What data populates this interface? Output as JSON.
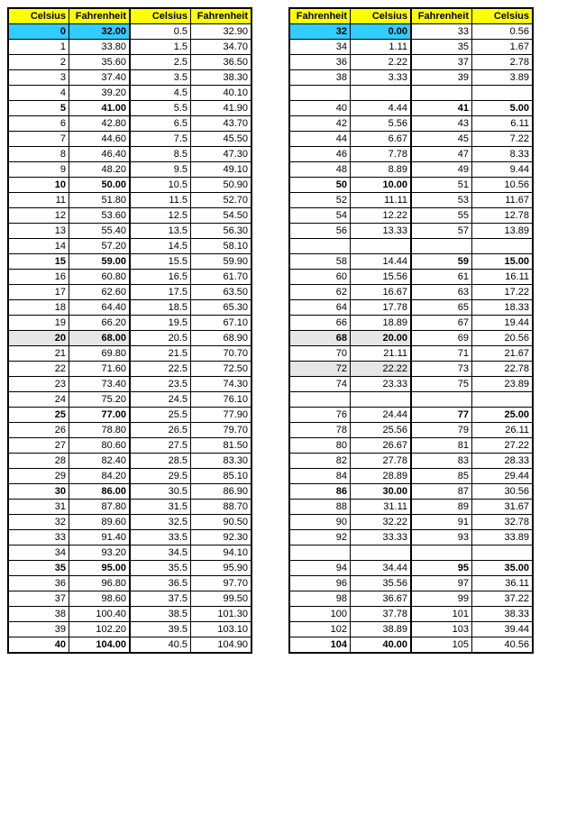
{
  "colors": {
    "header_bg": "#ffff00",
    "highlight_bg": "#33ccff",
    "shade_bg": "#e6e6e6",
    "border": "#000000",
    "background": "#ffffff"
  },
  "left_table": {
    "col1_header": "Celsius",
    "col2_header": "Fahrenheit",
    "col3_header": "Celsius",
    "col4_header": "Fahrenheit",
    "rows": [
      {
        "c1": "0",
        "f1": "32.00",
        "c2": "0.5",
        "f2": "32.90",
        "bold": true,
        "hl": true
      },
      {
        "c1": "1",
        "f1": "33.80",
        "c2": "1.5",
        "f2": "34.70"
      },
      {
        "c1": "2",
        "f1": "35.60",
        "c2": "2.5",
        "f2": "36.50"
      },
      {
        "c1": "3",
        "f1": "37.40",
        "c2": "3.5",
        "f2": "38.30"
      },
      {
        "c1": "4",
        "f1": "39.20",
        "c2": "4.5",
        "f2": "40.10"
      },
      {
        "c1": "5",
        "f1": "41.00",
        "c2": "5.5",
        "f2": "41.90",
        "bold": true
      },
      {
        "c1": "6",
        "f1": "42.80",
        "c2": "6.5",
        "f2": "43.70"
      },
      {
        "c1": "7",
        "f1": "44.60",
        "c2": "7.5",
        "f2": "45.50"
      },
      {
        "c1": "8",
        "f1": "46.40",
        "c2": "8.5",
        "f2": "47.30"
      },
      {
        "c1": "9",
        "f1": "48.20",
        "c2": "9.5",
        "f2": "49.10"
      },
      {
        "c1": "10",
        "f1": "50.00",
        "c2": "10.5",
        "f2": "50.90",
        "bold": true
      },
      {
        "c1": "11",
        "f1": "51.80",
        "c2": "11.5",
        "f2": "52.70"
      },
      {
        "c1": "12",
        "f1": "53.60",
        "c2": "12.5",
        "f2": "54.50"
      },
      {
        "c1": "13",
        "f1": "55.40",
        "c2": "13.5",
        "f2": "56.30"
      },
      {
        "c1": "14",
        "f1": "57.20",
        "c2": "14.5",
        "f2": "58.10"
      },
      {
        "c1": "15",
        "f1": "59.00",
        "c2": "15.5",
        "f2": "59.90",
        "bold": true
      },
      {
        "c1": "16",
        "f1": "60.80",
        "c2": "16.5",
        "f2": "61.70"
      },
      {
        "c1": "17",
        "f1": "62.60",
        "c2": "17.5",
        "f2": "63.50"
      },
      {
        "c1": "18",
        "f1": "64.40",
        "c2": "18.5",
        "f2": "65.30"
      },
      {
        "c1": "19",
        "f1": "66.20",
        "c2": "19.5",
        "f2": "67.10"
      },
      {
        "c1": "20",
        "f1": "68.00",
        "c2": "20.5",
        "f2": "68.90",
        "bold": true,
        "shade": true
      },
      {
        "c1": "21",
        "f1": "69.80",
        "c2": "21.5",
        "f2": "70.70"
      },
      {
        "c1": "22",
        "f1": "71.60",
        "c2": "22.5",
        "f2": "72.50"
      },
      {
        "c1": "23",
        "f1": "73.40",
        "c2": "23.5",
        "f2": "74.30"
      },
      {
        "c1": "24",
        "f1": "75.20",
        "c2": "24.5",
        "f2": "76.10"
      },
      {
        "c1": "25",
        "f1": "77.00",
        "c2": "25.5",
        "f2": "77.90",
        "bold": true
      },
      {
        "c1": "26",
        "f1": "78.80",
        "c2": "26.5",
        "f2": "79.70"
      },
      {
        "c1": "27",
        "f1": "80.60",
        "c2": "27.5",
        "f2": "81.50"
      },
      {
        "c1": "28",
        "f1": "82.40",
        "c2": "28.5",
        "f2": "83.30"
      },
      {
        "c1": "29",
        "f1": "84.20",
        "c2": "29.5",
        "f2": "85.10"
      },
      {
        "c1": "30",
        "f1": "86.00",
        "c2": "30.5",
        "f2": "86.90",
        "bold": true
      },
      {
        "c1": "31",
        "f1": "87.80",
        "c2": "31.5",
        "f2": "88.70"
      },
      {
        "c1": "32",
        "f1": "89.60",
        "c2": "32.5",
        "f2": "90.50"
      },
      {
        "c1": "33",
        "f1": "91.40",
        "c2": "33.5",
        "f2": "92.30"
      },
      {
        "c1": "34",
        "f1": "93.20",
        "c2": "34.5",
        "f2": "94.10"
      },
      {
        "c1": "35",
        "f1": "95.00",
        "c2": "35.5",
        "f2": "95.90",
        "bold": true
      },
      {
        "c1": "36",
        "f1": "96.80",
        "c2": "36.5",
        "f2": "97.70"
      },
      {
        "c1": "37",
        "f1": "98.60",
        "c2": "37.5",
        "f2": "99.50"
      },
      {
        "c1": "38",
        "f1": "100.40",
        "c2": "38.5",
        "f2": "101.30"
      },
      {
        "c1": "39",
        "f1": "102.20",
        "c2": "39.5",
        "f2": "103.10"
      },
      {
        "c1": "40",
        "f1": "104.00",
        "c2": "40.5",
        "f2": "104.90",
        "bold": true
      }
    ]
  },
  "right_table": {
    "col1_header": "Fahrenheit",
    "col2_header": "Celsius",
    "col3_header": "Fahrenheit",
    "col4_header": "Celsius",
    "rows": [
      {
        "c1": "32",
        "f1": "0.00",
        "c2": "33",
        "f2": "0.56",
        "bold": true,
        "hl": true
      },
      {
        "c1": "34",
        "f1": "1.11",
        "c2": "35",
        "f2": "1.67"
      },
      {
        "c1": "36",
        "f1": "2.22",
        "c2": "37",
        "f2": "2.78"
      },
      {
        "c1": "38",
        "f1": "3.33",
        "c2": "39",
        "f2": "3.89"
      },
      {
        "empty": true
      },
      {
        "c1": "40",
        "f1": "4.44",
        "c2": "41",
        "f2": "5.00",
        "bold2": true
      },
      {
        "c1": "42",
        "f1": "5.56",
        "c2": "43",
        "f2": "6.11"
      },
      {
        "c1": "44",
        "f1": "6.67",
        "c2": "45",
        "f2": "7.22"
      },
      {
        "c1": "46",
        "f1": "7.78",
        "c2": "47",
        "f2": "8.33"
      },
      {
        "c1": "48",
        "f1": "8.89",
        "c2": "49",
        "f2": "9.44"
      },
      {
        "c1": "50",
        "f1": "10.00",
        "c2": "51",
        "f2": "10.56",
        "bold": true
      },
      {
        "c1": "52",
        "f1": "11.11",
        "c2": "53",
        "f2": "11.67"
      },
      {
        "c1": "54",
        "f1": "12.22",
        "c2": "55",
        "f2": "12.78"
      },
      {
        "c1": "56",
        "f1": "13.33",
        "c2": "57",
        "f2": "13.89"
      },
      {
        "empty": true
      },
      {
        "c1": "58",
        "f1": "14.44",
        "c2": "59",
        "f2": "15.00",
        "bold2": true
      },
      {
        "c1": "60",
        "f1": "15.56",
        "c2": "61",
        "f2": "16.11"
      },
      {
        "c1": "62",
        "f1": "16.67",
        "c2": "63",
        "f2": "17.22"
      },
      {
        "c1": "64",
        "f1": "17.78",
        "c2": "65",
        "f2": "18.33"
      },
      {
        "c1": "66",
        "f1": "18.89",
        "c2": "67",
        "f2": "19.44"
      },
      {
        "c1": "68",
        "f1": "20.00",
        "c2": "69",
        "f2": "20.56",
        "bold": true,
        "shade": true
      },
      {
        "c1": "70",
        "f1": "21.11",
        "c2": "71",
        "f2": "21.67"
      },
      {
        "c1": "72",
        "f1": "22.22",
        "c2": "73",
        "f2": "22.78",
        "shade": true
      },
      {
        "c1": "74",
        "f1": "23.33",
        "c2": "75",
        "f2": "23.89"
      },
      {
        "empty": true
      },
      {
        "c1": "76",
        "f1": "24.44",
        "c2": "77",
        "f2": "25.00",
        "bold2": true
      },
      {
        "c1": "78",
        "f1": "25.56",
        "c2": "79",
        "f2": "26.11"
      },
      {
        "c1": "80",
        "f1": "26.67",
        "c2": "81",
        "f2": "27.22"
      },
      {
        "c1": "82",
        "f1": "27.78",
        "c2": "83",
        "f2": "28.33"
      },
      {
        "c1": "84",
        "f1": "28.89",
        "c2": "85",
        "f2": "29.44"
      },
      {
        "c1": "86",
        "f1": "30.00",
        "c2": "87",
        "f2": "30.56",
        "bold": true
      },
      {
        "c1": "88",
        "f1": "31.11",
        "c2": "89",
        "f2": "31.67"
      },
      {
        "c1": "90",
        "f1": "32.22",
        "c2": "91",
        "f2": "32.78"
      },
      {
        "c1": "92",
        "f1": "33.33",
        "c2": "93",
        "f2": "33.89"
      },
      {
        "empty": true
      },
      {
        "c1": "94",
        "f1": "34.44",
        "c2": "95",
        "f2": "35.00",
        "bold2": true
      },
      {
        "c1": "96",
        "f1": "35.56",
        "c2": "97",
        "f2": "36.11"
      },
      {
        "c1": "98",
        "f1": "36.67",
        "c2": "99",
        "f2": "37.22"
      },
      {
        "c1": "100",
        "f1": "37.78",
        "c2": "101",
        "f2": "38.33"
      },
      {
        "c1": "102",
        "f1": "38.89",
        "c2": "103",
        "f2": "39.44"
      },
      {
        "c1": "104",
        "f1": "40.00",
        "c2": "105",
        "f2": "40.56",
        "bold": true
      }
    ]
  }
}
